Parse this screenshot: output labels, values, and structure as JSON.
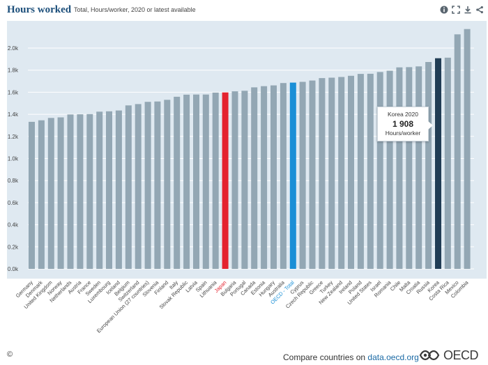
{
  "header": {
    "title": "Hours worked",
    "subtitle": "Total, Hours/worker, 2020 or latest available"
  },
  "toolbar": {
    "icons": [
      "info-icon",
      "expand-icon",
      "download-icon",
      "share-icon"
    ]
  },
  "colors": {
    "default_bar": "#93a7b4",
    "japan": "#e4232f",
    "oecd_total": "#1a8fd6",
    "korea": "#213d55",
    "plot_bg": "#dfe9f1",
    "grid": "#ffffff"
  },
  "chart_data": {
    "type": "bar",
    "title": "Hours worked",
    "subtitle": "Total, Hours/worker, 2020 or latest available",
    "ylabel": "Hours/worker",
    "ylim": [
      0,
      2200
    ],
    "yticks": [
      0,
      200,
      400,
      600,
      800,
      1000,
      1200,
      1400,
      1600,
      1800,
      2000
    ],
    "ytick_labels": [
      "0.0k",
      "0.2k",
      "0.4k",
      "0.6k",
      "0.8k",
      "1.0k",
      "1.2k",
      "1.4k",
      "1.6k",
      "1.8k",
      "2.0k"
    ],
    "grid": true,
    "categories": [
      "Germany",
      "Denmark",
      "United Kingdom",
      "Norway",
      "Netherlands",
      "Austria",
      "France",
      "Sweden",
      "Luxembourg",
      "Iceland",
      "Belgium",
      "Switzerland",
      "European Union (27 countries)",
      "Slovenia",
      "Finland",
      "Italy",
      "Slovak Republic",
      "Latvia",
      "Spain",
      "Lithuania",
      "Japan",
      "Bulgaria",
      "Portugal",
      "Canada",
      "Estonia",
      "Hungary",
      "Australia",
      "OECD - Total",
      "Cyprus",
      "Czech Republic",
      "Greece",
      "Turkey",
      "New Zealand",
      "Ireland",
      "Poland",
      "United States",
      "Israel",
      "Romania",
      "Chile",
      "Malta",
      "Croatia",
      "Russia",
      "Korea",
      "Costa Rica",
      "Mexico",
      "Colombia"
    ],
    "values": [
      1332,
      1346,
      1367,
      1372,
      1399,
      1400,
      1402,
      1424,
      1427,
      1435,
      1481,
      1493,
      1513,
      1516,
      1531,
      1559,
      1578,
      1579,
      1579,
      1597,
      1598,
      1608,
      1613,
      1644,
      1655,
      1662,
      1683,
      1687,
      1694,
      1706,
      1728,
      1732,
      1738,
      1749,
      1766,
      1767,
      1783,
      1795,
      1825,
      1827,
      1834,
      1874,
      1908,
      1913,
      2124,
      2172
    ],
    "highlights": {
      "Japan": "japan",
      "OECD - Total": "oecd_total",
      "Korea": "korea"
    },
    "tooltip": {
      "line1": "Korea 2020",
      "value": "1 908",
      "line3": "Hours/worker"
    }
  },
  "footer": {
    "copyright": "©",
    "compare_prefix": "Compare countries on ",
    "compare_link": "data.oecd.org",
    "logo_text": "OECD"
  }
}
